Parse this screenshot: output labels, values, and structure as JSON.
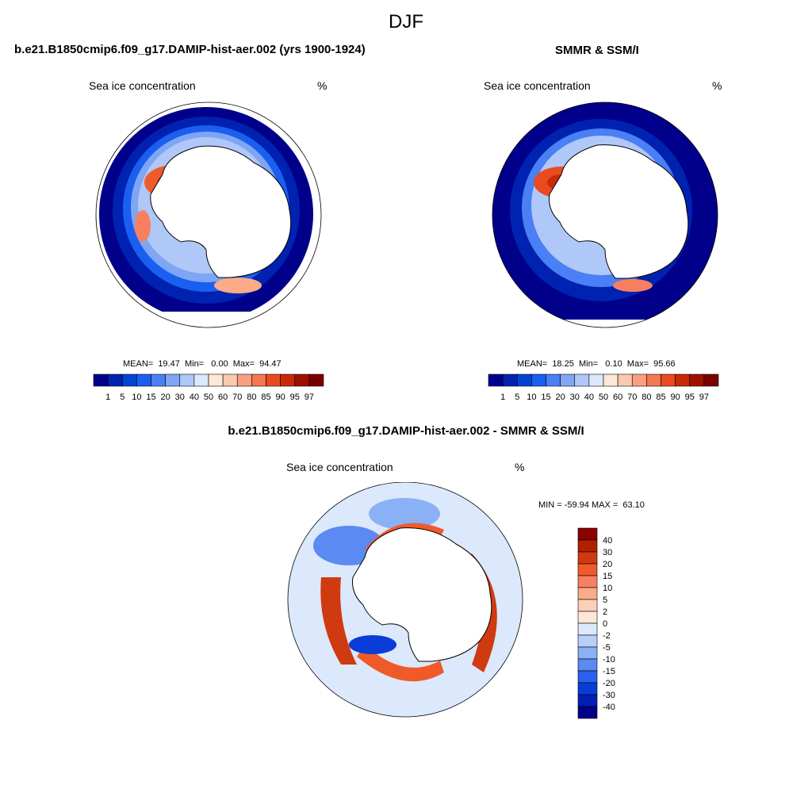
{
  "season_title": "DJF",
  "panels": [
    {
      "title": "b.e21.B1850cmip6.f09_g17.DAMIP-hist-aer.002 (yrs 1900-1924)",
      "left_label": "Sea ice concentration",
      "right_label": "%",
      "stats": "MEAN=  19.47  Min=   0.00  Max=  94.47"
    },
    {
      "title": "SMMR & SSM/I",
      "left_label": "Sea ice concentration",
      "right_label": "%",
      "stats": "MEAN=  18.25  Min=   0.10  Max=  95.66"
    },
    {
      "title": "b.e21.B1850cmip6.f09_g17.DAMIP-hist-aer.002 - SMMR & SSM/I",
      "left_label": "Sea ice concentration",
      "right_label": "%",
      "stats": "MIN = -59.94 MAX =  63.10"
    }
  ],
  "colorbar_conc": {
    "labels": [
      "1",
      "5",
      "10",
      "15",
      "20",
      "30",
      "40",
      "50",
      "60",
      "70",
      "80",
      "85",
      "90",
      "95",
      "97"
    ],
    "colors": [
      "#00008b",
      "#0022b0",
      "#0044d4",
      "#1a5ff0",
      "#4a7ff5",
      "#7fa5f5",
      "#b0c8f8",
      "#dce8fb",
      "#fde8d8",
      "#fcc8b0",
      "#f9a080",
      "#f47850",
      "#ea4a20",
      "#c82a08",
      "#a01000",
      "#7a0000"
    ]
  },
  "colorbar_diff": {
    "labels": [
      "40",
      "30",
      "20",
      "15",
      "10",
      "5",
      "2",
      "0",
      "-2",
      "-5",
      "-10",
      "-15",
      "-20",
      "-30",
      "-40"
    ],
    "colors": [
      "#8b0000",
      "#b02000",
      "#d03a10",
      "#f05a28",
      "#f88060",
      "#fbab88",
      "#fcd0b8",
      "#fde8d8",
      "#dce8fb",
      "#b8d0f8",
      "#8ab0f5",
      "#5a8af2",
      "#2c60ee",
      "#0a3cd8",
      "#0020b0",
      "#000088"
    ]
  },
  "chart_data": [
    {
      "type": "heatmap",
      "title": "b.e21.B1850cmip6.f09_g17.DAMIP-hist-aer.002 (yrs 1900-1924)",
      "variable": "Sea ice concentration",
      "units": "%",
      "projection": "south polar stereographic",
      "mean": 19.47,
      "min": 0.0,
      "max": 94.47,
      "levels": [
        1,
        5,
        10,
        15,
        20,
        30,
        40,
        50,
        60,
        70,
        80,
        85,
        90,
        95,
        97
      ]
    },
    {
      "type": "heatmap",
      "title": "SMMR & SSM/I",
      "variable": "Sea ice concentration",
      "units": "%",
      "projection": "south polar stereographic",
      "mean": 18.25,
      "min": 0.1,
      "max": 95.66,
      "levels": [
        1,
        5,
        10,
        15,
        20,
        30,
        40,
        50,
        60,
        70,
        80,
        85,
        90,
        95,
        97
      ]
    },
    {
      "type": "heatmap",
      "title": "b.e21.B1850cmip6.f09_g17.DAMIP-hist-aer.002 - SMMR & SSM/I",
      "variable": "Sea ice concentration",
      "units": "%",
      "projection": "south polar stereographic",
      "min": -59.94,
      "max": 63.1,
      "levels": [
        -40,
        -30,
        -20,
        -15,
        -10,
        -5,
        -2,
        0,
        2,
        5,
        10,
        15,
        20,
        30,
        40
      ]
    }
  ]
}
